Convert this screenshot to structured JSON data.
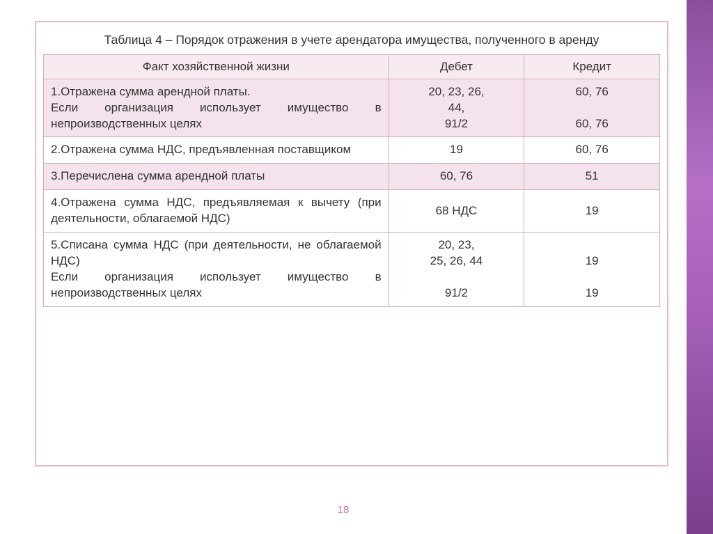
{
  "slide": {
    "caption": "Таблица 4 – Порядок отражения в учете арендатора имущества, полученного в аренду",
    "page_number": "18",
    "side_gradient": [
      "#8a4f9c",
      "#b56fc7",
      "#a55fb8",
      "#7a3e8c"
    ],
    "border_color": "#e6b8c9"
  },
  "table": {
    "type": "table",
    "columns": [
      "Факт хозяйственной жизни",
      "Дебет",
      "Кредит"
    ],
    "column_widths_pct": [
      56,
      22,
      22
    ],
    "header_bg": "#f7ebf1",
    "tint_bg": "#f4e2ec",
    "border_color": "#d9a8bd",
    "font_size_pt": 13,
    "text_color": "#333333",
    "rows": [
      {
        "tint": true,
        "fact": "1.Отражена сумма арендной платы.\nЕсли организация использует имущество в непроизводственных целях",
        "debit": "20, 23, 26,\n44,\n91/2",
        "credit": "60, 76\n\n60, 76"
      },
      {
        "tint": false,
        "fact": "2.Отражена сумма НДС, предъявленная поставщиком",
        "debit": "19",
        "credit": "60, 76"
      },
      {
        "tint": true,
        "fact": "3.Перечислена сумма арендной платы",
        "debit": "60, 76",
        "credit": "51"
      },
      {
        "tint": false,
        "fact": "4.Отражена сумма НДС, предъявляемая к вычету (при деятельности, облагаемой НДС)",
        "debit": "68 НДС",
        "credit": "19"
      },
      {
        "tint": false,
        "fact": "5.Списана сумма НДС (при деятельности, не облагаемой НДС)\nЕсли организация использует имущество в непроизводственных целях",
        "debit": "20, 23,\n25, 26, 44\n\n91/2",
        "credit": "\n19\n\n19"
      }
    ]
  }
}
